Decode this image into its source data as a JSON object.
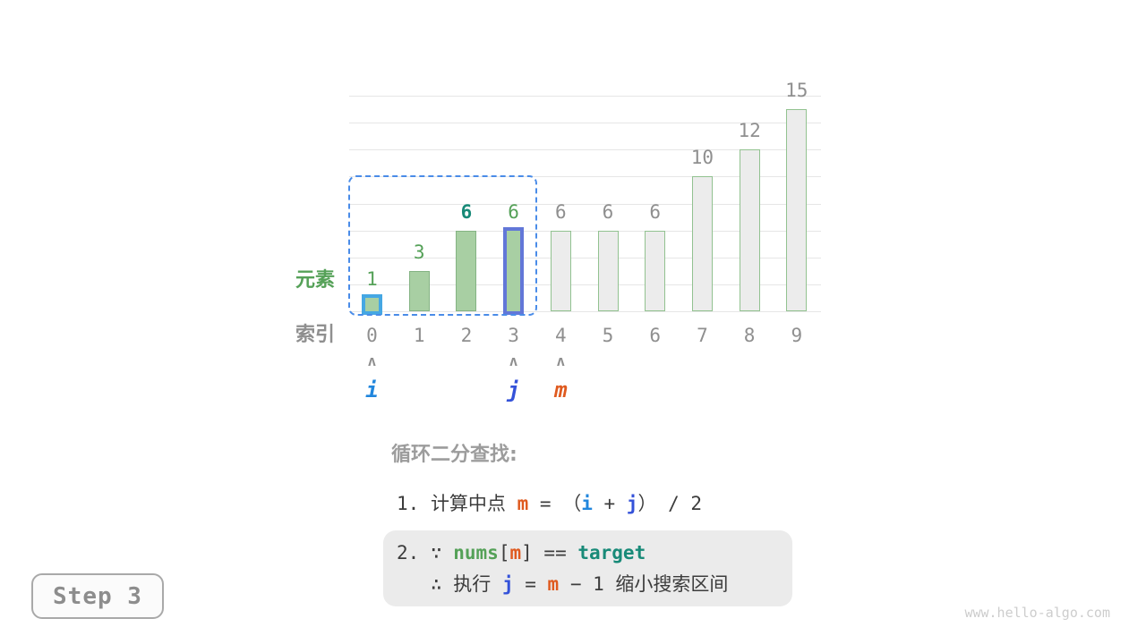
{
  "page": {
    "step_label": "Step 3",
    "watermark": "www.hello-algo.com",
    "background": "#ffffff"
  },
  "chart_data": {
    "type": "bar",
    "title": "",
    "categories": [
      "0",
      "1",
      "2",
      "3",
      "4",
      "5",
      "6",
      "7",
      "8",
      "9"
    ],
    "values": [
      1,
      3,
      6,
      6,
      6,
      6,
      6,
      10,
      12,
      15
    ],
    "ylim": [
      0,
      16
    ],
    "grid_step": 2,
    "grid": "on",
    "ylabel": "元素",
    "xlabel": "索引",
    "bar_states": [
      "ptr-i",
      "range",
      "range",
      "ptr-j",
      "out",
      "out",
      "out",
      "out",
      "out",
      "out"
    ],
    "value_label_styles": [
      "green",
      "green",
      "teal",
      "green",
      "gray",
      "gray",
      "gray",
      "gray",
      "gray",
      "gray"
    ],
    "search_range": {
      "from_index": 0,
      "to_index": 3
    }
  },
  "pointers": {
    "caret_glyph": "ʌ",
    "items": [
      {
        "label": "i",
        "index": 0,
        "color": "#2186dd"
      },
      {
        "label": "j",
        "index": 3,
        "color": "#3452d9"
      },
      {
        "label": "m",
        "index": 4,
        "color": "#df5a1f"
      }
    ]
  },
  "instructions": {
    "heading": "循环二分查找:",
    "step1": {
      "num": "1. ",
      "label": "计算中点 ",
      "var_m": "m",
      "eq": " = ",
      "open": "（",
      "var_i": "i",
      "plus": " + ",
      "var_j": "j",
      "close": "）",
      "tail": " / 2"
    },
    "step2": {
      "num": "2. ",
      "because": "∵ ",
      "nums": "nums",
      "bracket_open": "[",
      "var_m": "m",
      "bracket_close": "]",
      "eq": " == ",
      "target": "target",
      "therefore": "∴ 执行 ",
      "var_j": "j",
      "assign": " = ",
      "var_m2": "m",
      "minus": " − 1 ",
      "tail": "缩小搜索区间"
    }
  },
  "colors": {
    "bar_fill_green": "#a8cfa3",
    "bar_border_green": "#84b383",
    "bar_fill_gray": "#ececec",
    "bar_border_gray_green": "#92c290",
    "pointer_i_border": "#45a7e3",
    "pointer_j_border": "#6277d8",
    "search_box_dash": "#4a8ce8",
    "gridline": "#e6e6e6",
    "text_green": "#55a158",
    "text_teal": "#188a78",
    "text_gray": "#8f8f8f",
    "text_dark": "#3c3c3c"
  }
}
